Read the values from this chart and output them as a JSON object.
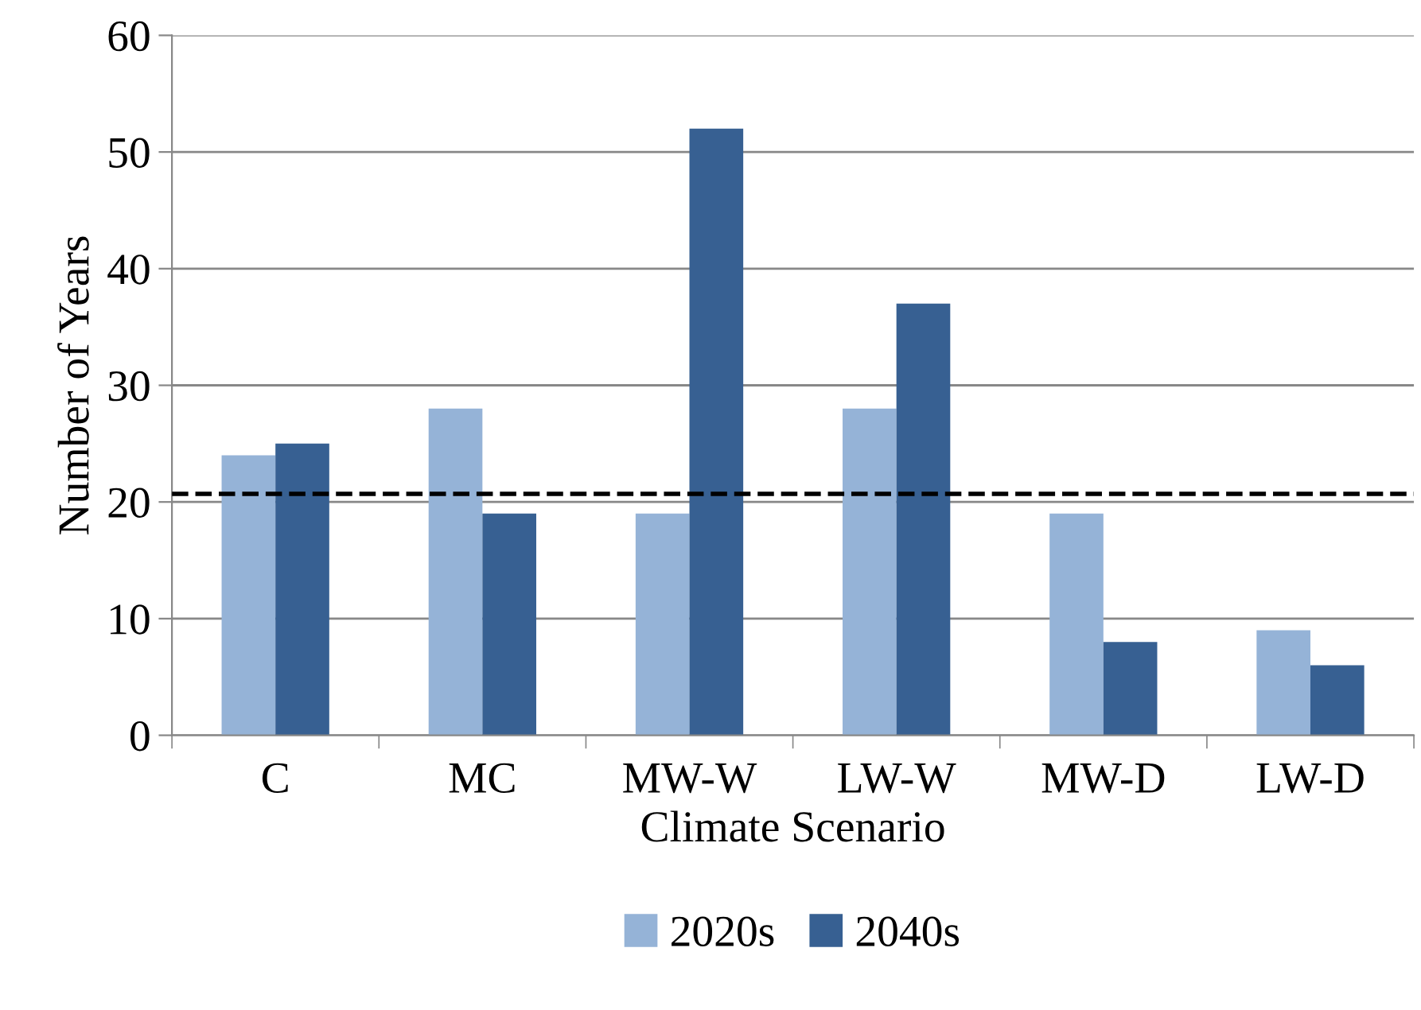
{
  "chart_data": {
    "type": "bar",
    "xlabel": "Climate Scenario",
    "ylabel": "Number of Years",
    "categories": [
      "C",
      "MC",
      "MW-W",
      "LW-W",
      "MW-D",
      "LW-D"
    ],
    "series": [
      {
        "name": "2020s",
        "color": "#95b3d7",
        "values": [
          24,
          28,
          19,
          28,
          19,
          9
        ]
      },
      {
        "name": "2040s",
        "color": "#376092",
        "values": [
          25,
          19,
          52,
          37,
          8,
          6
        ]
      }
    ],
    "ylim": [
      0,
      60
    ],
    "yticks": [
      0,
      10,
      20,
      30,
      40,
      50,
      60
    ],
    "grid": "y",
    "legend": "bottom",
    "ref_lines": [
      {
        "axis": "y",
        "value": 20.7,
        "label": null,
        "color": "#000000",
        "line_style": "dashed"
      }
    ]
  }
}
